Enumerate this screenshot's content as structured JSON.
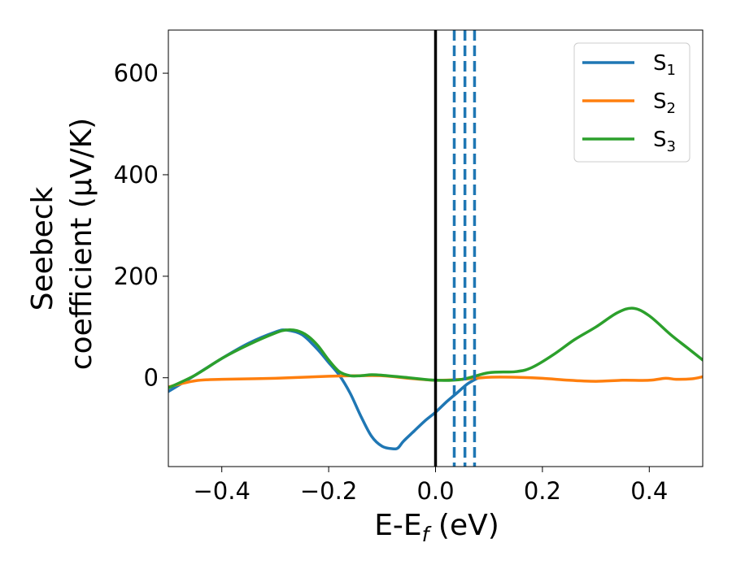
{
  "chart_data": {
    "type": "line",
    "title": "",
    "xlabel_main": "E-E",
    "xlabel_sub": "f",
    "xlabel_unit": " (eV)",
    "ylabel_line1": "Seebeck",
    "ylabel_line2": "coefficient  (μV/K)",
    "xlim": [
      -0.5,
      0.5
    ],
    "ylim": [
      -175,
      685
    ],
    "xticks": [
      -0.4,
      -0.2,
      0.0,
      0.2,
      0.4
    ],
    "xtick_labels": [
      "−0.4",
      "−0.2",
      "0.0",
      "0.2",
      "0.4"
    ],
    "yticks": [
      0,
      200,
      400,
      600
    ],
    "ytick_labels": [
      "0",
      "200",
      "400",
      "600"
    ],
    "legend_position": "top-right",
    "vertical_lines": [
      {
        "x": 0.0,
        "style": "solid",
        "color": "#000000"
      },
      {
        "x": 0.035,
        "style": "dashed",
        "color": "#1f77b4"
      },
      {
        "x": 0.055,
        "style": "dashed",
        "color": "#1f77b4"
      },
      {
        "x": 0.073,
        "style": "dashed",
        "color": "#1f77b4"
      }
    ],
    "series": [
      {
        "name": "S",
        "sub": "1",
        "color": "#1f77b4",
        "x": [
          -0.5,
          -0.45,
          -0.4,
          -0.35,
          -0.3,
          -0.28,
          -0.25,
          -0.22,
          -0.2,
          -0.18,
          -0.16,
          -0.14,
          -0.12,
          -0.1,
          -0.08,
          -0.07,
          -0.06,
          -0.04,
          -0.02,
          0.0,
          0.02,
          0.04,
          0.06,
          0.08
        ],
        "y": [
          -27,
          5,
          38,
          68,
          90,
          94,
          85,
          55,
          30,
          5,
          -30,
          -75,
          -115,
          -135,
          -140,
          -138,
          -125,
          -105,
          -85,
          -68,
          -48,
          -30,
          -12,
          0
        ]
      },
      {
        "name": "S",
        "sub": "2",
        "color": "#ff7f0e",
        "x": [
          -0.5,
          -0.45,
          -0.4,
          -0.3,
          -0.2,
          -0.15,
          -0.1,
          -0.05,
          0.0,
          0.05,
          0.1,
          0.15,
          0.2,
          0.25,
          0.3,
          0.35,
          0.4,
          0.43,
          0.45,
          0.48,
          0.5
        ],
        "y": [
          -18,
          -6,
          -3,
          -1,
          3,
          4,
          4,
          -1,
          -5,
          -3,
          1,
          1,
          -1,
          -5,
          -7,
          -5,
          -5,
          -1,
          -3,
          -2,
          2
        ]
      },
      {
        "name": "S",
        "sub": "3",
        "color": "#2ca02c",
        "x": [
          -0.5,
          -0.45,
          -0.4,
          -0.35,
          -0.3,
          -0.28,
          -0.26,
          -0.24,
          -0.22,
          -0.2,
          -0.18,
          -0.16,
          -0.14,
          -0.12,
          -0.1,
          -0.05,
          0.0,
          0.05,
          0.1,
          0.15,
          0.18,
          0.22,
          0.26,
          0.3,
          0.34,
          0.37,
          0.4,
          0.44,
          0.47,
          0.5
        ],
        "y": [
          -20,
          5,
          38,
          65,
          88,
          94,
          93,
          83,
          63,
          35,
          12,
          4,
          4,
          6,
          5,
          0,
          -5,
          -3,
          10,
          12,
          20,
          45,
          75,
          100,
          128,
          137,
          122,
          85,
          60,
          35
        ]
      }
    ]
  }
}
